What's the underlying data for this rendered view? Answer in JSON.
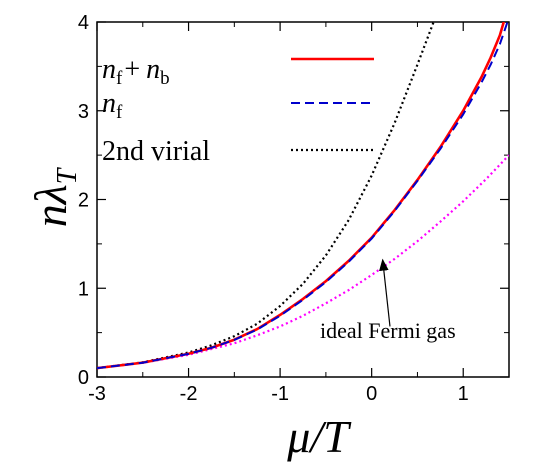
{
  "chart_data": {
    "type": "line",
    "title": "",
    "xlabel_main": "μ",
    "xlabel_rest": "/T",
    "ylabel_main": "nλ",
    "ylabel_sub": "T",
    "xlim": [
      -3,
      1.5
    ],
    "ylim": [
      0,
      4
    ],
    "x_ticks": [
      -3,
      -2,
      -1,
      0,
      1
    ],
    "y_ticks": [
      0,
      1,
      2,
      3,
      4
    ],
    "x_tick_labels": [
      "-3",
      "-2",
      "-1",
      "0",
      "1"
    ],
    "y_tick_labels": [
      "0",
      "1",
      "2",
      "3",
      "4"
    ],
    "grid": false,
    "legend_position": "top-left",
    "series": [
      {
        "name": "n_f + n_b",
        "legend": {
          "base1": "n",
          "sub1": "f",
          "op": "+",
          "base2": "n",
          "sub2": "b"
        },
        "color": "#ff0000",
        "dash": "solid",
        "x": [
          -3.0,
          -2.5,
          -2.0,
          -1.75,
          -1.5,
          -1.25,
          -1.0,
          -0.75,
          -0.5,
          -0.25,
          0.0,
          0.25,
          0.5,
          0.75,
          1.0,
          1.2,
          1.3,
          1.4,
          1.5
        ],
        "y": [
          0.1,
          0.162,
          0.262,
          0.33,
          0.42,
          0.54,
          0.7,
          0.88,
          1.08,
          1.31,
          1.57,
          1.88,
          2.22,
          2.59,
          3.0,
          3.38,
          3.6,
          3.85,
          4.2
        ]
      },
      {
        "name": "n_f",
        "legend": {
          "base1": "n",
          "sub1": "f"
        },
        "color": "#0000cc",
        "dash": "dashed",
        "x": [
          -3.0,
          -2.5,
          -2.0,
          -1.75,
          -1.5,
          -1.25,
          -1.0,
          -0.75,
          -0.5,
          -0.25,
          0.0,
          0.25,
          0.5,
          0.75,
          1.0,
          1.2,
          1.3,
          1.4,
          1.5
        ],
        "y": [
          0.1,
          0.161,
          0.261,
          0.329,
          0.418,
          0.535,
          0.69,
          0.87,
          1.07,
          1.3,
          1.56,
          1.87,
          2.21,
          2.57,
          2.96,
          3.32,
          3.52,
          3.75,
          4.05
        ]
      },
      {
        "name": "2nd virial",
        "legend": {
          "text": "2nd virial"
        },
        "color": "#000000",
        "dash": "dotted",
        "x": [
          -3.0,
          -2.5,
          -2.0,
          -1.75,
          -1.5,
          -1.25,
          -1.0,
          -0.75,
          -0.5,
          -0.25,
          0.0,
          0.25,
          0.5,
          0.75,
          0.8
        ],
        "y": [
          0.1,
          0.166,
          0.276,
          0.357,
          0.46,
          0.6,
          0.8,
          1.05,
          1.37,
          1.77,
          2.27,
          2.86,
          3.52,
          4.2,
          4.4
        ]
      },
      {
        "name": "ideal Fermi gas",
        "color": "#ff00ff",
        "dash": "dotted",
        "x": [
          -3.0,
          -2.5,
          -2.0,
          -1.5,
          -1.25,
          -1.0,
          -0.75,
          -0.5,
          -0.25,
          0.0,
          0.25,
          0.5,
          0.75,
          1.0,
          1.25,
          1.5
        ],
        "y": [
          0.1,
          0.16,
          0.25,
          0.38,
          0.47,
          0.57,
          0.69,
          0.83,
          0.98,
          1.15,
          1.33,
          1.53,
          1.75,
          1.98,
          2.23,
          2.5
        ]
      }
    ],
    "annotations": [
      {
        "text": "ideal Fermi gas",
        "arrow_from": [
          0.2,
          0.57
        ],
        "arrow_to": [
          0.12,
          1.32
        ]
      }
    ]
  }
}
